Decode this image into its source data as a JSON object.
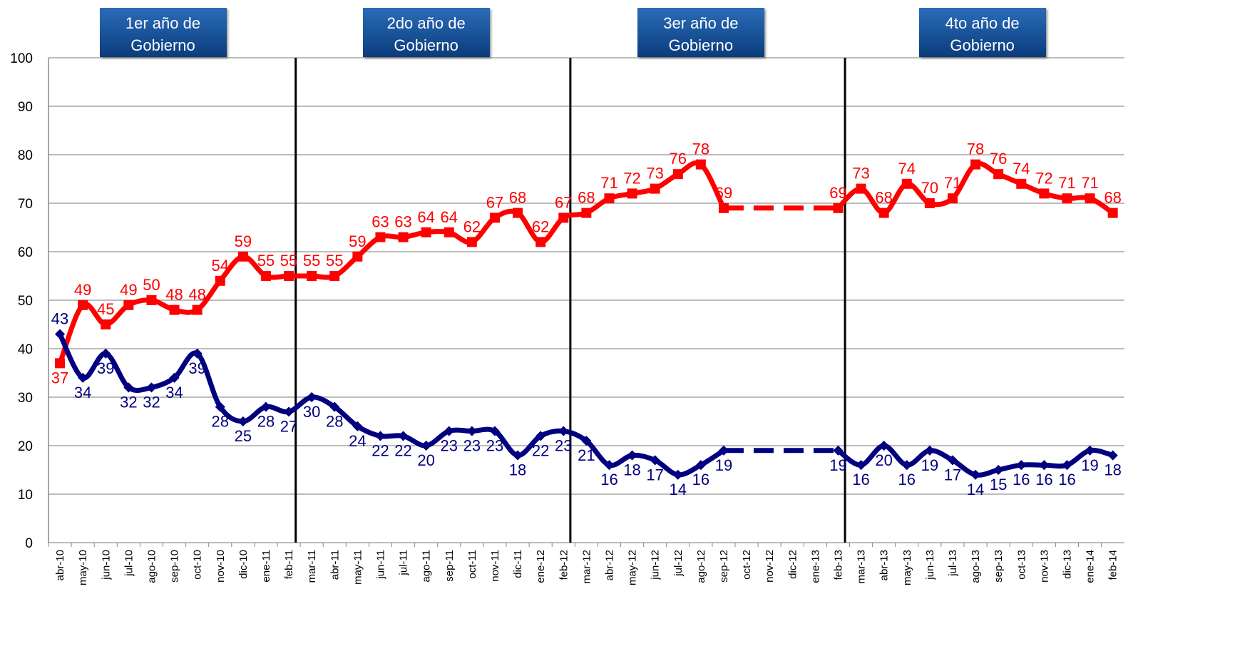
{
  "chart_data": {
    "type": "line",
    "annotations": [
      "1er año de Gobierno",
      "2do año de Gobierno",
      "3er año de Gobierno",
      "4to año de Gobierno"
    ],
    "categories": [
      "abr-10",
      "may-10",
      "jun-10",
      "jul-10",
      "ago-10",
      "sep-10",
      "oct-10",
      "nov-10",
      "dic-10",
      "ene-11",
      "feb-11",
      "mar-11",
      "abr-11",
      "may-11",
      "jun-11",
      "jul-11",
      "ago-11",
      "sep-11",
      "oct-11",
      "nov-11",
      "dic-11",
      "ene-12",
      "feb-12",
      "mar-12",
      "abr-12",
      "may-12",
      "jun-12",
      "jul-12",
      "ago-12",
      "sep-12",
      "oct-12",
      "nov-12",
      "dic-12",
      "ene-13",
      "feb-13",
      "mar-13",
      "abr-13",
      "may-13",
      "jun-13",
      "jul-13",
      "ago-13",
      "sep-13",
      "oct-13",
      "nov-13",
      "dic-13",
      "ene-14",
      "feb-14"
    ],
    "series": [
      {
        "color": "#ff0000",
        "values": [
          37,
          49,
          45,
          49,
          50,
          48,
          48,
          54,
          59,
          55,
          55,
          55,
          55,
          59,
          63,
          63,
          64,
          64,
          62,
          67,
          68,
          62,
          67,
          68,
          71,
          72,
          73,
          76,
          78,
          69,
          null,
          null,
          null,
          null,
          69,
          73,
          68,
          74,
          70,
          71,
          78,
          76,
          74,
          72,
          71,
          71,
          68
        ]
      },
      {
        "color": "#000080",
        "values": [
          43,
          34,
          39,
          32,
          32,
          34,
          39,
          28,
          25,
          28,
          27,
          30,
          28,
          24,
          22,
          22,
          20,
          23,
          23,
          23,
          18,
          22,
          23,
          21,
          16,
          18,
          17,
          14,
          16,
          19,
          null,
          null,
          null,
          null,
          19,
          16,
          20,
          16,
          19,
          17,
          14,
          15,
          16,
          16,
          16,
          19,
          18
        ]
      }
    ],
    "ylim": [
      0,
      100
    ],
    "yticks": [
      0,
      10,
      20,
      30,
      40,
      50,
      60,
      70,
      80,
      90,
      100
    ],
    "grid": true
  }
}
